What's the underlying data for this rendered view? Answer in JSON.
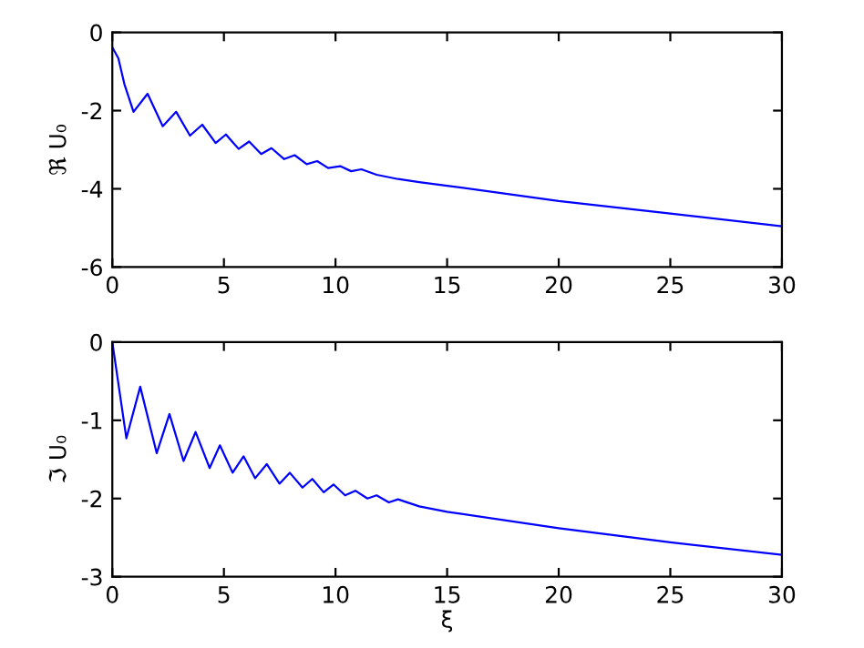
{
  "chart_data": [
    {
      "type": "line",
      "ylabel": "ℜ U₀",
      "xlim": [
        0,
        30
      ],
      "ylim": [
        -6,
        0
      ],
      "xticks": [
        0,
        5,
        10,
        15,
        20,
        25,
        30
      ],
      "yticks": [
        -6,
        -4,
        -2,
        0
      ],
      "grid": false,
      "series": [
        {
          "color": "#0000ff",
          "x": [
            0,
            0.27,
            0.54,
            0.95,
            1.58,
            2.26,
            2.86,
            3.48,
            4.03,
            4.63,
            5.09,
            5.66,
            6.13,
            6.67,
            7.13,
            7.7,
            8.17,
            8.71,
            9.18,
            9.67,
            10.21,
            10.7,
            11.16,
            11.84,
            12.8,
            13.75,
            15,
            20,
            25,
            30
          ],
          "values": [
            -0.38,
            -0.66,
            -1.32,
            -2.03,
            -1.57,
            -2.4,
            -2.03,
            -2.64,
            -2.36,
            -2.83,
            -2.61,
            -2.98,
            -2.79,
            -3.11,
            -2.96,
            -3.24,
            -3.14,
            -3.37,
            -3.29,
            -3.47,
            -3.42,
            -3.55,
            -3.5,
            -3.64,
            -3.75,
            -3.83,
            -3.92,
            -4.31,
            -4.63,
            -4.96
          ]
        }
      ]
    },
    {
      "type": "line",
      "xlabel": "ξ",
      "ylabel": "ℑ U₀",
      "xlim": [
        0,
        30
      ],
      "ylim": [
        -3,
        0
      ],
      "xticks": [
        0,
        5,
        10,
        15,
        20,
        25,
        30
      ],
      "yticks": [
        -3,
        -2,
        -1,
        0
      ],
      "grid": false,
      "series": [
        {
          "color": "#0000ff",
          "x": [
            0,
            0.63,
            1.25,
            1.99,
            2.56,
            3.19,
            3.73,
            4.36,
            4.82,
            5.39,
            5.88,
            6.4,
            6.92,
            7.49,
            7.95,
            8.52,
            8.96,
            9.47,
            9.91,
            10.43,
            10.89,
            11.43,
            11.84,
            12.39,
            12.8,
            13.75,
            15,
            20,
            25,
            30
          ],
          "values": [
            0,
            -1.23,
            -0.57,
            -1.42,
            -0.92,
            -1.52,
            -1.15,
            -1.61,
            -1.32,
            -1.67,
            -1.46,
            -1.74,
            -1.56,
            -1.81,
            -1.67,
            -1.86,
            -1.75,
            -1.92,
            -1.82,
            -1.96,
            -1.9,
            -2.0,
            -1.96,
            -2.05,
            -2.01,
            -2.1,
            -2.17,
            -2.38,
            -2.56,
            -2.72
          ]
        }
      ]
    }
  ]
}
